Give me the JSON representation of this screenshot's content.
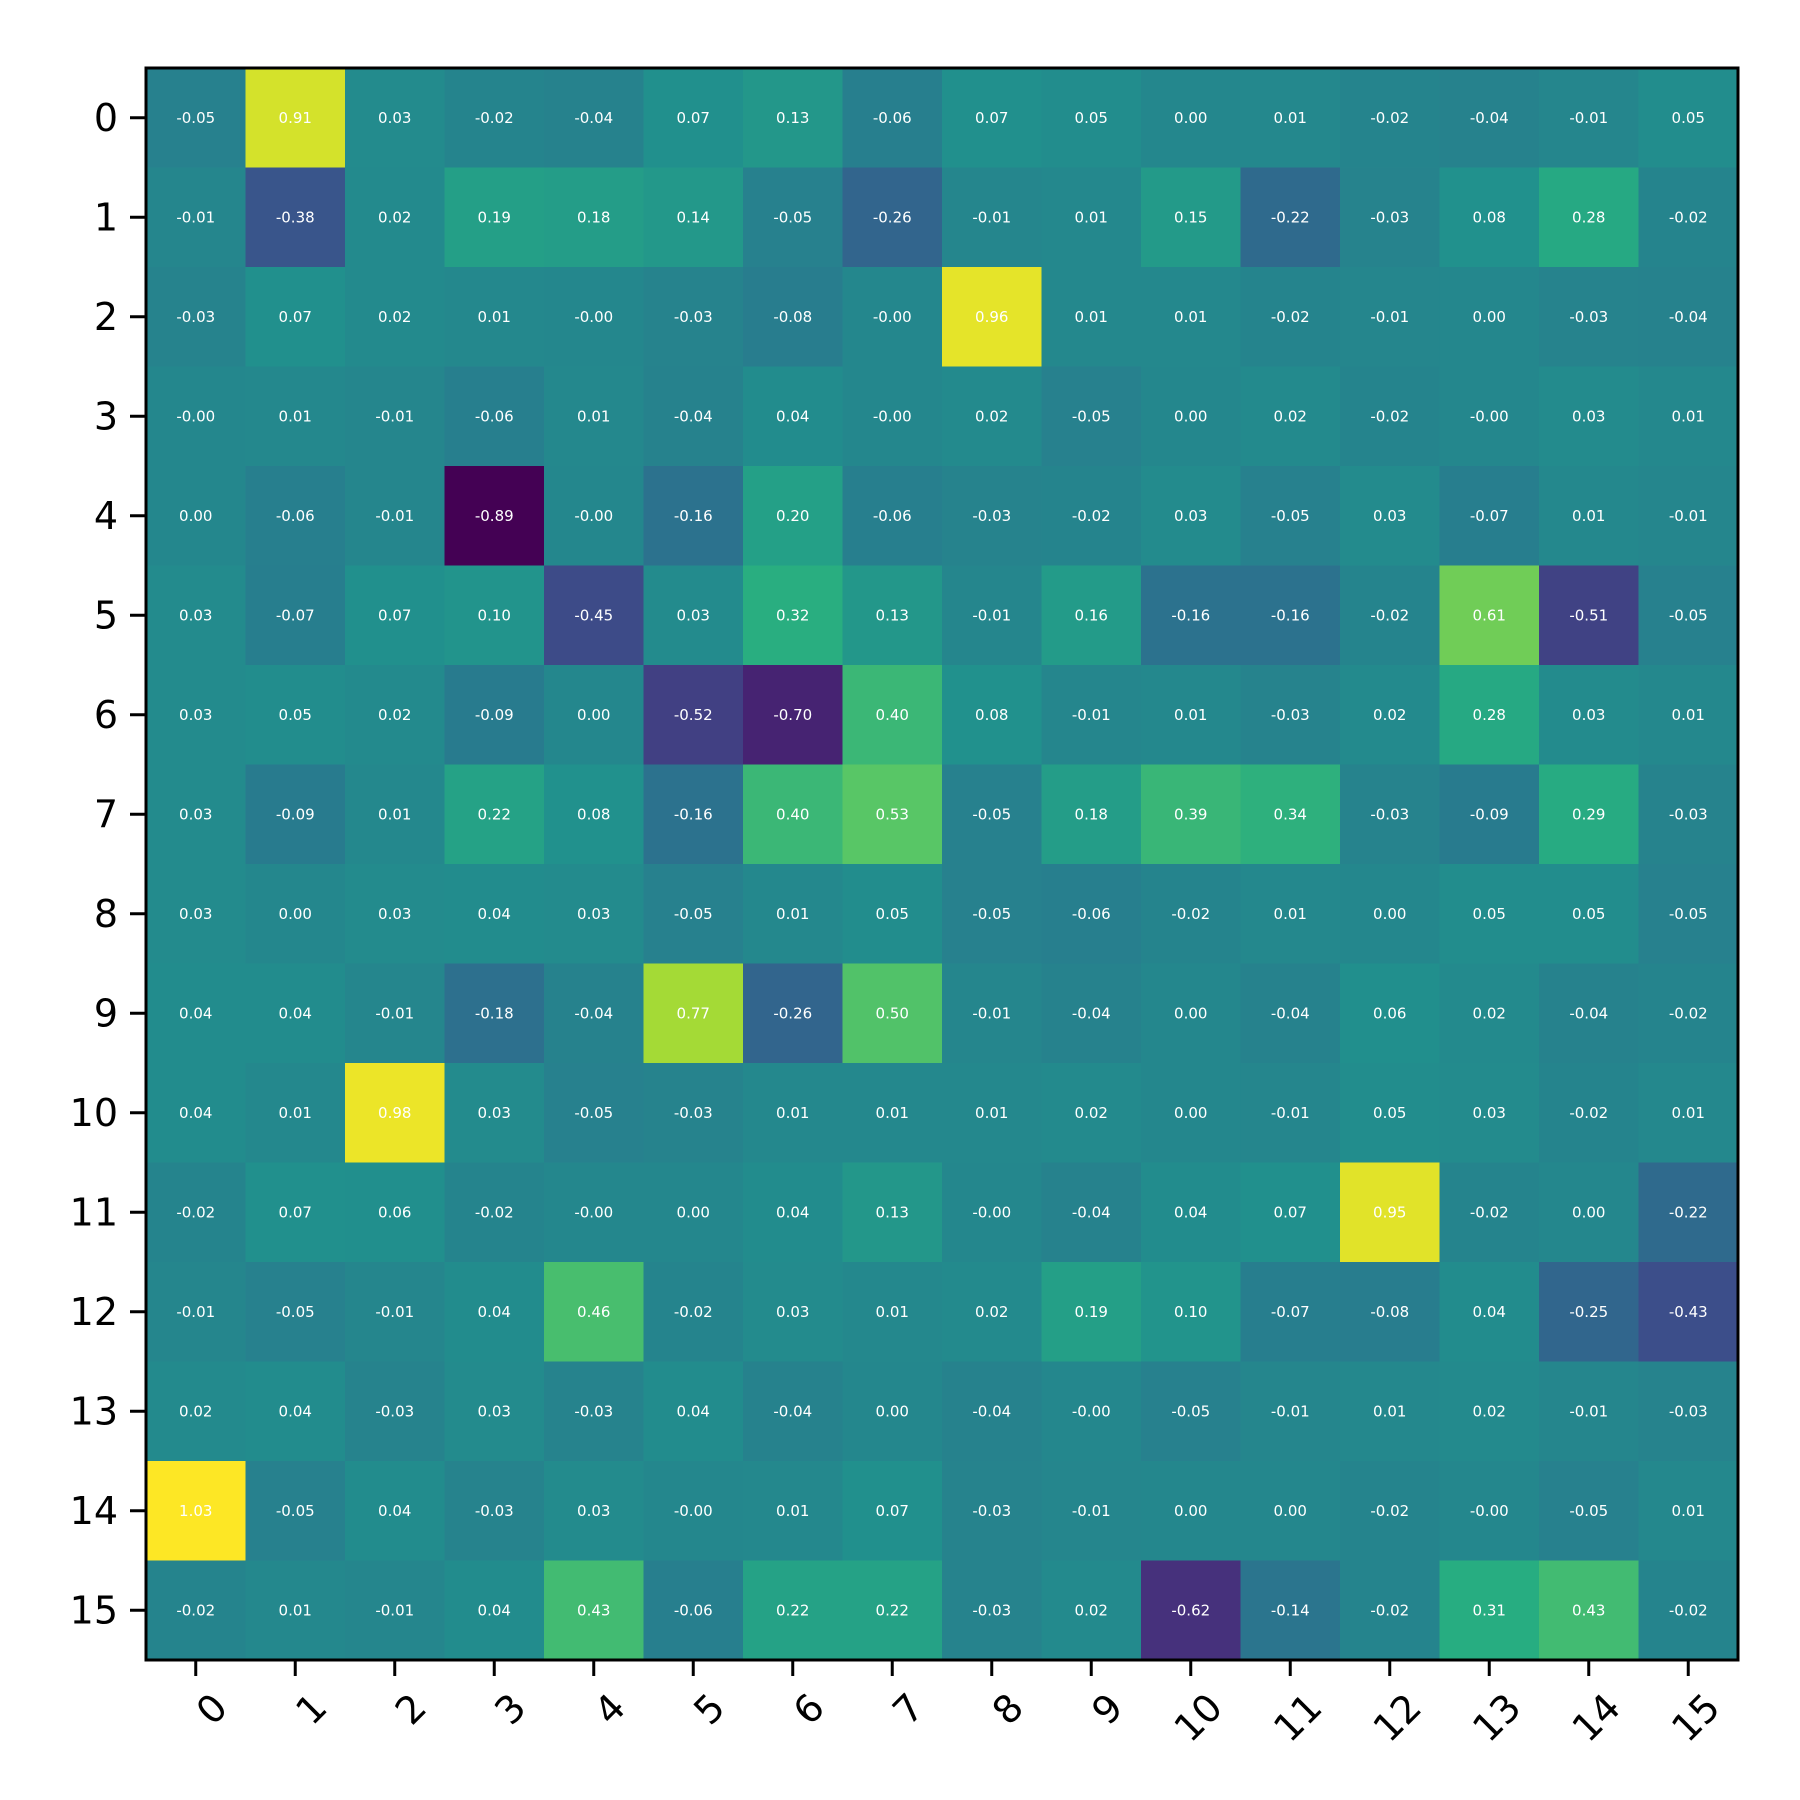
{
  "chart_data": {
    "type": "heatmap",
    "title": "",
    "xlabel": "",
    "ylabel": "",
    "colormap": "viridis",
    "color_range": [
      -0.89,
      1.03
    ],
    "cell_label_color": "#ffffff",
    "x_tick_labels": [
      "0",
      "1",
      "2",
      "3",
      "4",
      "5",
      "6",
      "7",
      "8",
      "9",
      "10",
      "11",
      "12",
      "13",
      "14",
      "15"
    ],
    "y_tick_labels": [
      "0",
      "1",
      "2",
      "3",
      "4",
      "5",
      "6",
      "7",
      "8",
      "9",
      "10",
      "11",
      "12",
      "13",
      "14",
      "15"
    ],
    "grid": false,
    "values": [
      [
        -0.05,
        0.91,
        0.03,
        -0.02,
        -0.04,
        0.07,
        0.13,
        -0.06,
        0.07,
        0.05,
        0.0,
        0.01,
        -0.02,
        -0.04,
        -0.01,
        0.05
      ],
      [
        -0.01,
        -0.38,
        0.02,
        0.19,
        0.18,
        0.14,
        -0.05,
        -0.26,
        -0.01,
        0.01,
        0.15,
        -0.22,
        -0.03,
        0.08,
        0.28,
        -0.02
      ],
      [
        -0.03,
        0.07,
        0.02,
        0.01,
        -0.0,
        -0.03,
        -0.08,
        -0.0,
        0.96,
        0.01,
        0.01,
        -0.02,
        -0.01,
        0.0,
        -0.03,
        -0.04
      ],
      [
        -0.0,
        0.01,
        -0.01,
        -0.06,
        0.01,
        -0.04,
        0.04,
        -0.0,
        0.02,
        -0.05,
        0.0,
        0.02,
        -0.02,
        -0.0,
        0.03,
        0.01
      ],
      [
        0.0,
        -0.06,
        -0.01,
        -0.89,
        -0.0,
        -0.16,
        0.2,
        -0.06,
        -0.03,
        -0.02,
        0.03,
        -0.05,
        0.03,
        -0.07,
        0.01,
        -0.01
      ],
      [
        0.03,
        -0.07,
        0.07,
        0.1,
        -0.45,
        0.03,
        0.32,
        0.13,
        -0.01,
        0.16,
        -0.16,
        -0.16,
        -0.02,
        0.61,
        -0.51,
        -0.05
      ],
      [
        0.03,
        0.05,
        0.02,
        -0.09,
        0.0,
        -0.52,
        -0.7,
        0.4,
        0.08,
        -0.01,
        0.01,
        -0.03,
        0.02,
        0.28,
        0.03,
        0.01
      ],
      [
        0.03,
        -0.09,
        0.01,
        0.22,
        0.08,
        -0.16,
        0.4,
        0.53,
        -0.05,
        0.18,
        0.39,
        0.34,
        -0.03,
        -0.09,
        0.29,
        -0.03
      ],
      [
        0.03,
        0.0,
        0.03,
        0.04,
        0.03,
        -0.05,
        0.01,
        0.05,
        -0.05,
        -0.06,
        -0.02,
        0.01,
        0.0,
        0.05,
        0.05,
        -0.05
      ],
      [
        0.04,
        0.04,
        -0.01,
        -0.18,
        -0.04,
        0.77,
        -0.26,
        0.5,
        -0.01,
        -0.04,
        0.0,
        -0.04,
        0.06,
        0.02,
        -0.04,
        -0.02
      ],
      [
        0.04,
        0.01,
        0.98,
        0.03,
        -0.05,
        -0.03,
        0.01,
        0.01,
        0.01,
        0.02,
        0.0,
        -0.01,
        0.05,
        0.03,
        -0.02,
        0.01
      ],
      [
        -0.02,
        0.07,
        0.06,
        -0.02,
        -0.0,
        0.0,
        0.04,
        0.13,
        -0.0,
        -0.04,
        0.04,
        0.07,
        0.95,
        -0.02,
        0.0,
        -0.22
      ],
      [
        -0.01,
        -0.05,
        -0.01,
        0.04,
        0.46,
        -0.02,
        0.03,
        0.01,
        0.02,
        0.19,
        0.1,
        -0.07,
        -0.08,
        0.04,
        -0.25,
        -0.43
      ],
      [
        0.02,
        0.04,
        -0.03,
        0.03,
        -0.03,
        0.04,
        -0.04,
        0.0,
        -0.04,
        -0.0,
        -0.05,
        -0.01,
        0.01,
        0.02,
        -0.01,
        -0.03
      ],
      [
        1.03,
        -0.05,
        0.04,
        -0.03,
        0.03,
        -0.0,
        0.01,
        0.07,
        -0.03,
        -0.01,
        0.0,
        0.0,
        -0.02,
        -0.0,
        -0.05,
        0.01
      ],
      [
        -0.02,
        0.01,
        -0.01,
        0.04,
        0.43,
        -0.06,
        0.22,
        0.22,
        -0.03,
        0.02,
        -0.62,
        -0.14,
        -0.02,
        0.31,
        0.43,
        -0.02
      ]
    ]
  }
}
